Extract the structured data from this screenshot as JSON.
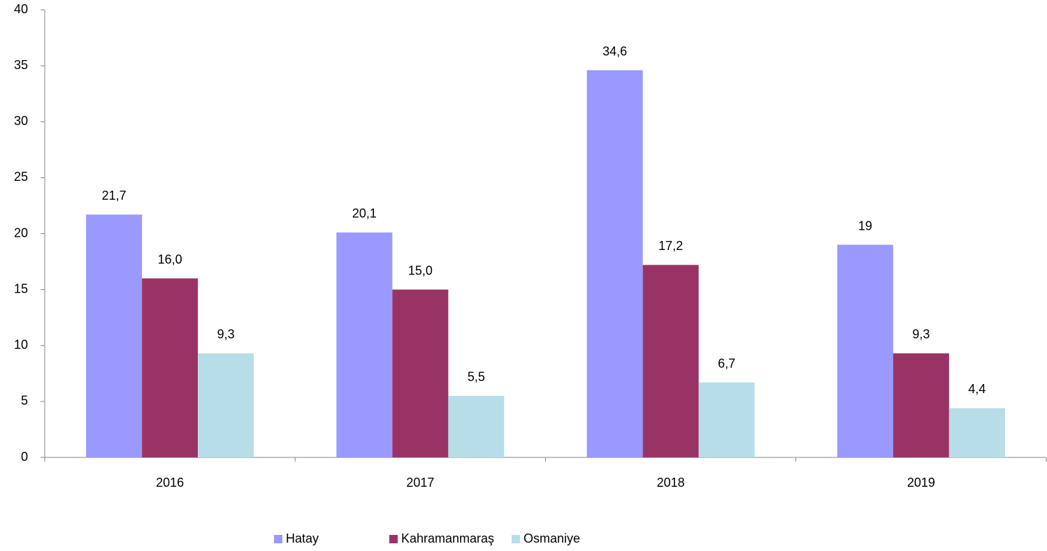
{
  "chart_data": {
    "type": "bar",
    "categories": [
      "2016",
      "2017",
      "2018",
      "2019"
    ],
    "series": [
      {
        "name": "Hatay",
        "color": "#9999ff",
        "values": [
          21.7,
          20.1,
          34.6,
          19
        ],
        "value_labels": [
          "21,7",
          "20,1",
          "34,6",
          "19"
        ]
      },
      {
        "name": "Kahramanmaraş",
        "color": "#993366",
        "values": [
          16.0,
          15.0,
          17.2,
          9.3
        ],
        "value_labels": [
          "16,0",
          "15,0",
          "17,2",
          "9,3"
        ]
      },
      {
        "name": "Osmaniye",
        "color": "#b7dee8",
        "values": [
          9.3,
          5.5,
          6.7,
          4.4
        ],
        "value_labels": [
          "9,3",
          "5,5",
          "6,7",
          "4,4"
        ]
      }
    ],
    "ylim": [
      0,
      40
    ],
    "yticks": [
      0,
      5,
      10,
      15,
      20,
      25,
      30,
      35,
      40
    ],
    "grid": false,
    "legend": "bottom"
  }
}
